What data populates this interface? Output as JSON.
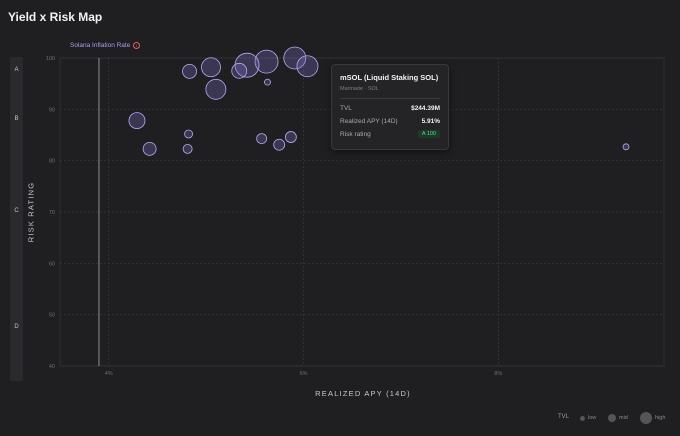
{
  "page": {
    "title": "Yield x Risk Map"
  },
  "chart_data": {
    "type": "scatter",
    "title": "Yield x Risk Map",
    "xlabel": "REALIZED APY (14D)",
    "ylabel": "RISK RATING",
    "x_ticks": [
      "4%",
      "6%",
      "8%"
    ],
    "x_tick_values": [
      4,
      6,
      8
    ],
    "xlim": [
      3.5,
      9.7
    ],
    "y_ticks": [
      100,
      90,
      80,
      70,
      60,
      50,
      40
    ],
    "ylim": [
      40,
      100
    ],
    "rating_bands": [
      {
        "letter": "A",
        "value": 97.5
      },
      {
        "letter": "B",
        "value": 88
      },
      {
        "letter": "C",
        "value": 70
      },
      {
        "letter": "D",
        "value": 47.5
      }
    ],
    "reference_line": {
      "label": "Solana Inflation Rate",
      "x": 3.9
    },
    "grid": true,
    "bubble_fill": "#8678d0",
    "bubble_stroke": "#b6aaf0",
    "points": [
      {
        "x": 5.62,
        "y": 99.3,
        "tvl": 23
      },
      {
        "x": 5.42,
        "y": 98.6,
        "tvl": 24
      },
      {
        "x": 5.34,
        "y": 97.5,
        "tvl": 15
      },
      {
        "x": 5.05,
        "y": 98.2,
        "tvl": 19
      },
      {
        "x": 5.91,
        "y": 100,
        "tvl": 22
      },
      {
        "x": 6.04,
        "y": 98.4,
        "tvl": 21
      },
      {
        "x": 4.83,
        "y": 97.4,
        "tvl": 14
      },
      {
        "x": 5.63,
        "y": 95.3,
        "tvl": 6
      },
      {
        "x": 5.1,
        "y": 93.9,
        "tvl": 20
      },
      {
        "x": 4.29,
        "y": 87.8,
        "tvl": 16
      },
      {
        "x": 4.82,
        "y": 85.2,
        "tvl": 8
      },
      {
        "x": 5.87,
        "y": 84.6,
        "tvl": 11
      },
      {
        "x": 5.75,
        "y": 83.1,
        "tvl": 11
      },
      {
        "x": 4.42,
        "y": 82.3,
        "tvl": 13
      },
      {
        "x": 4.81,
        "y": 82.3,
        "tvl": 9
      },
      {
        "x": 5.57,
        "y": 84.3,
        "tvl": 10
      },
      {
        "x": 9.31,
        "y": 82.7,
        "tvl": 6
      }
    ]
  },
  "tooltip": {
    "title": "mSOL (Liquid Staking SOL)",
    "subtitle": "Marinade · SOL",
    "rows": [
      {
        "label": "TVL",
        "value": "$244.39M"
      },
      {
        "label": "Realized APY (14D)",
        "value": "5.91%"
      },
      {
        "label": "Risk rating",
        "value": "A 100"
      }
    ]
  },
  "legend": {
    "title": "TVL",
    "items": [
      {
        "label": "low",
        "size": 5
      },
      {
        "label": "mid",
        "size": 8
      },
      {
        "label": "high",
        "size": 12
      }
    ]
  }
}
